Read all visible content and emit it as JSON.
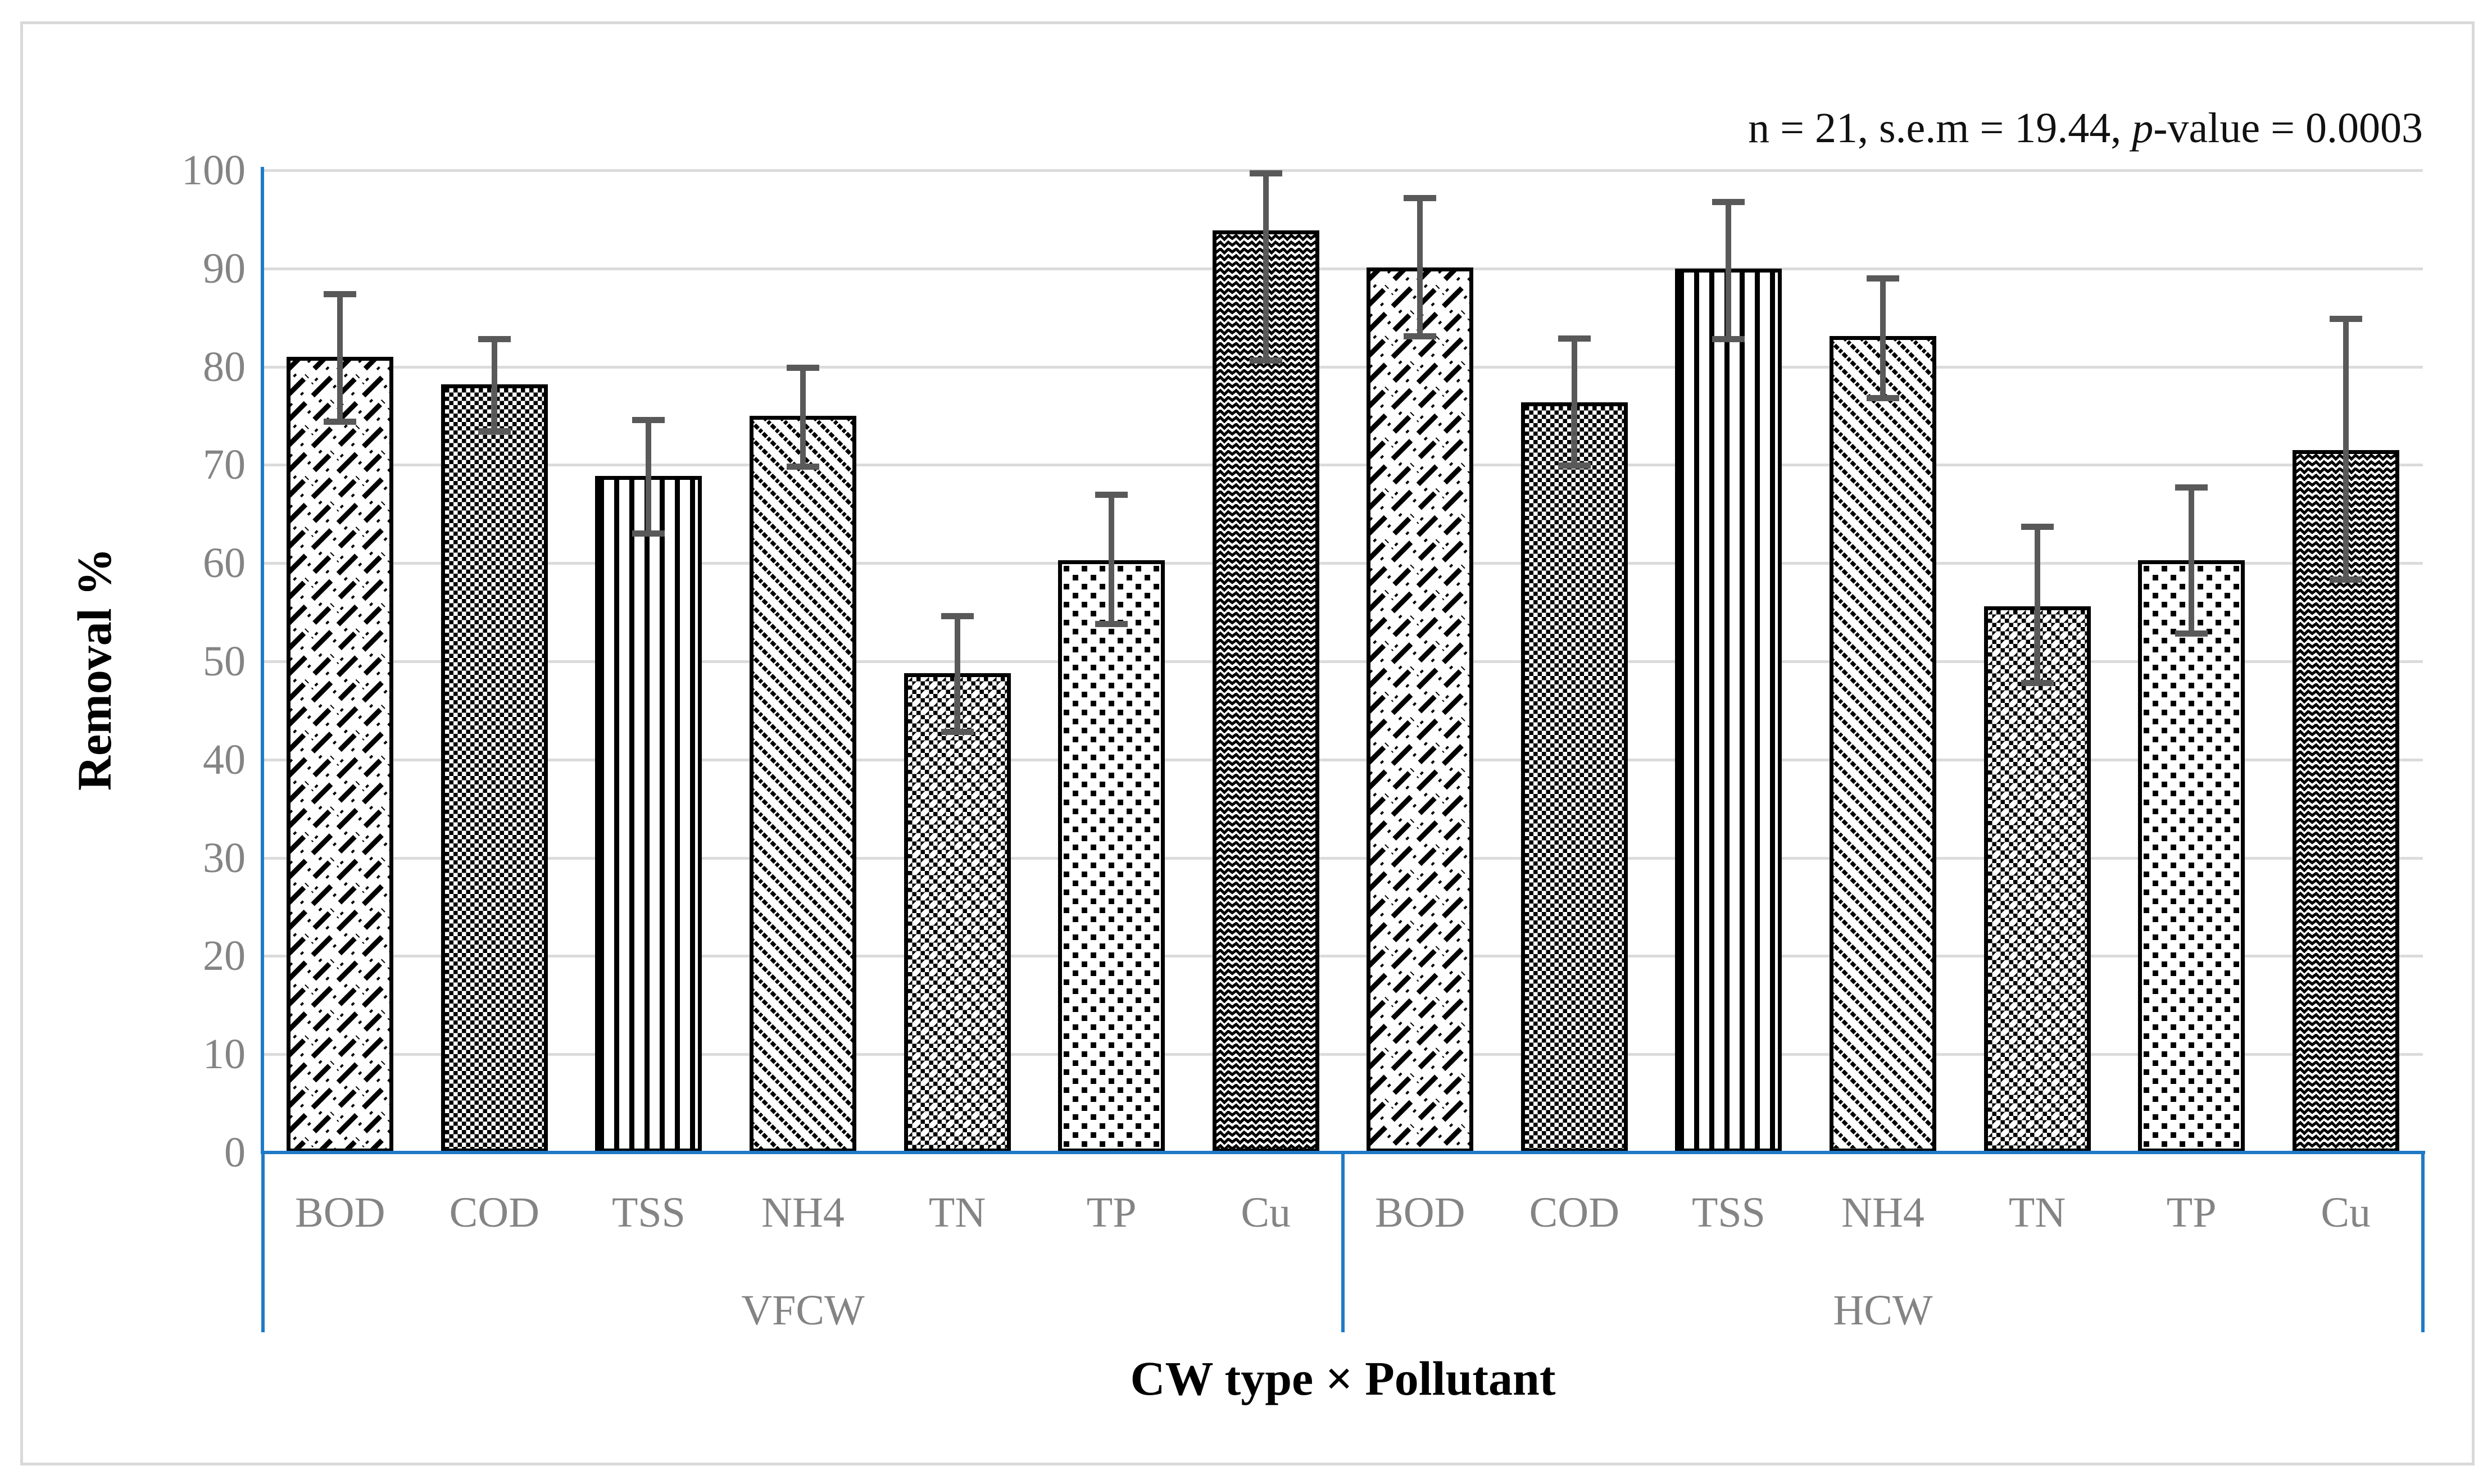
{
  "chart_data": {
    "type": "bar",
    "title": "",
    "ylabel": "Removal %",
    "xlabel": "CW type × Pollutant",
    "annotation": {
      "prefix": "n = 21, s.e.m = 19.44, ",
      "italic_term": "p",
      "suffix": "-value = 0.0003"
    },
    "ylim": [
      0,
      100
    ],
    "yticks": [
      0,
      10,
      20,
      30,
      40,
      50,
      60,
      70,
      80,
      90,
      100
    ],
    "categories": [
      "BOD",
      "COD",
      "TSS",
      "NH4",
      "TN",
      "TP",
      "Cu"
    ],
    "grid": "horizontal-light-gray",
    "legend": "none",
    "bar_patterns": {
      "BOD": "dashed-diagonal-brick-up",
      "COD": "small-checkerboard",
      "TSS": "vertical-lines",
      "NH4": "diagonal-stripes-down",
      "TN": "checkerboard-diamond-voids",
      "TP": "offset-black-squares",
      "Cu": "zigzag-chevron"
    },
    "groups": [
      {
        "label": "VFCW",
        "bars": [
          {
            "category": "BOD",
            "value": 81.0,
            "err_low": 74.1,
            "err_high": 87.7
          },
          {
            "category": "COD",
            "value": 78.2,
            "err_low": 73.1,
            "err_high": 83.1
          },
          {
            "category": "TSS",
            "value": 68.9,
            "err_low": 62.7,
            "err_high": 74.9
          },
          {
            "category": "NH4",
            "value": 75.0,
            "err_low": 69.5,
            "err_high": 80.2
          },
          {
            "category": "TN",
            "value": 48.8,
            "err_low": 42.5,
            "err_high": 54.9
          },
          {
            "category": "TP",
            "value": 60.3,
            "err_low": 53.5,
            "err_high": 67.3
          },
          {
            "category": "Cu",
            "value": 93.9,
            "err_low": 80.3,
            "err_high": 100.0
          }
        ]
      },
      {
        "label": "HCW",
        "bars": [
          {
            "category": "BOD",
            "value": 90.1,
            "err_low": 82.8,
            "err_high": 97.5
          },
          {
            "category": "COD",
            "value": 76.4,
            "err_low": 69.6,
            "err_high": 83.2
          },
          {
            "category": "TSS",
            "value": 90.0,
            "err_low": 82.5,
            "err_high": 97.1
          },
          {
            "category": "NH4",
            "value": 83.1,
            "err_low": 76.5,
            "err_high": 89.3
          },
          {
            "category": "TN",
            "value": 55.6,
            "err_low": 47.5,
            "err_high": 64.0
          },
          {
            "category": "TP",
            "value": 60.3,
            "err_low": 52.5,
            "err_high": 68.0
          },
          {
            "category": "Cu",
            "value": 71.5,
            "err_low": 58.0,
            "err_high": 85.2
          }
        ]
      }
    ],
    "colors": {
      "axis_line": "#1F7AC6",
      "gridline": "#DBDBDB",
      "error_bar": "#595959",
      "tick_label_gray": "#848484",
      "bar_outline": "#000000",
      "bar_background": "#FFFFFF",
      "figure_border": "#D9D9D9",
      "axis_title": "#000000"
    }
  }
}
